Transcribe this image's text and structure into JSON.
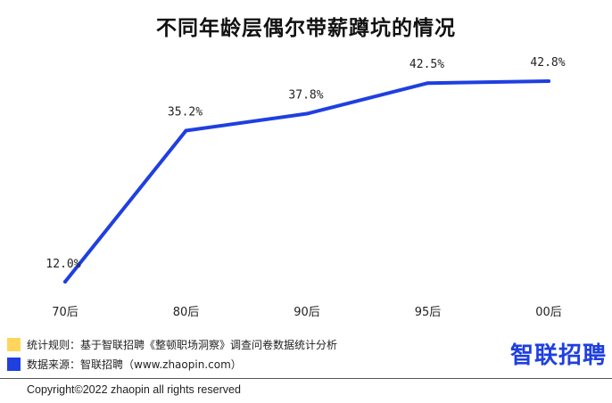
{
  "chart_data": {
    "type": "line",
    "title": "不同年龄层偶尔带薪蹲坑的情况",
    "categories": [
      "70后",
      "80后",
      "90后",
      "95后",
      "00后"
    ],
    "series": [
      {
        "values": [
          12.0,
          35.2,
          37.8,
          42.5,
          42.8
        ],
        "labels": [
          "12.0%",
          "35.2%",
          "37.8%",
          "42.5%",
          "42.8%"
        ]
      }
    ],
    "unit": "%",
    "ylim": [
      10,
      44
    ],
    "grid": false,
    "line_color": "#1f3fe0"
  },
  "notes": [
    {
      "text": "统计规则：基于智联招聘《整顿职场洞察》调查问卷数据统计分析",
      "color": "#ffd65c"
    },
    {
      "text": "数据来源：智联招聘（www.zhaopin.com）",
      "color": "#1f3fe0"
    }
  ],
  "brand": "智联招聘",
  "copyright": "Copyright©2022 zhaopin all rights reserved"
}
